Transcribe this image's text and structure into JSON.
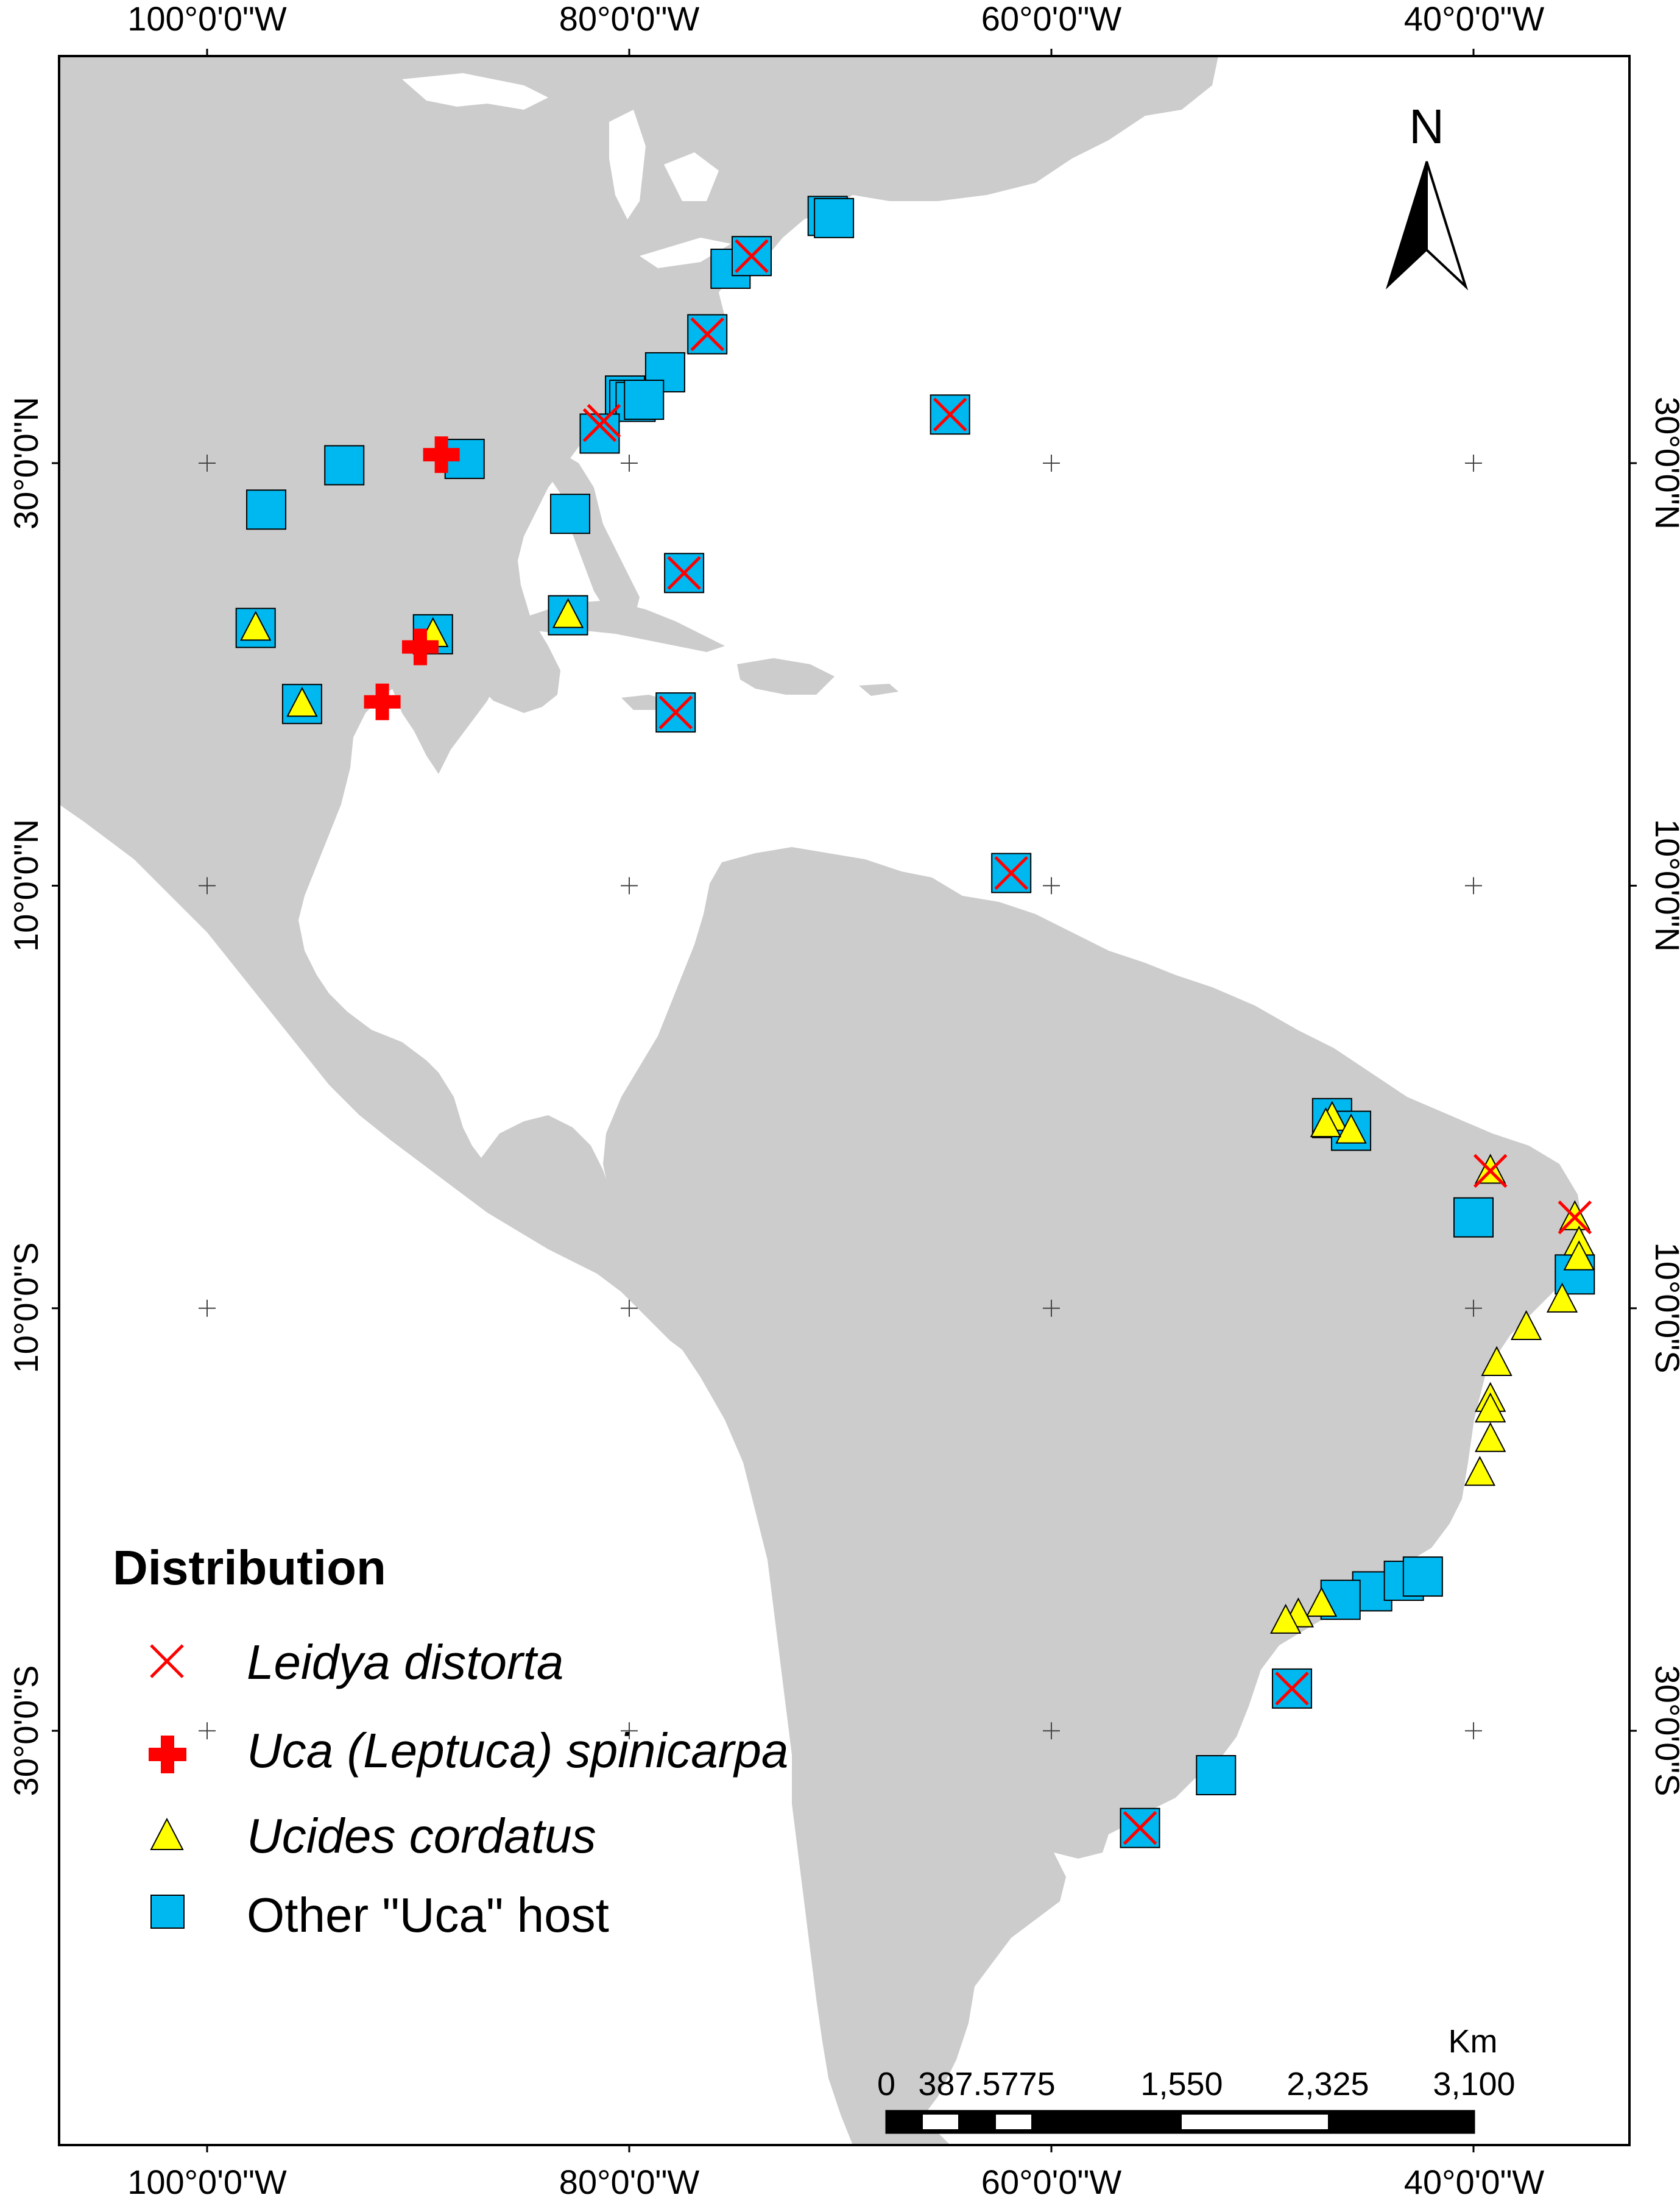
{
  "map": {
    "north_label": "N",
    "lon_ticks_top": [
      "100°0'0\"W",
      "80°0'0\"W",
      "60°0'0\"W",
      "40°0'0\"W"
    ],
    "lon_ticks_bottom": [
      "100°0'0\"W",
      "80°0'0\"W",
      "60°0'0\"W",
      "40°0'0\"W"
    ],
    "lat_ticks_left": [
      "30°0'0\"N",
      "10°0'0\"N",
      "10°0'0\"S",
      "30°0'0\"S"
    ],
    "lat_ticks_right": [
      "30°0'0\"N",
      "10°0'0\"N",
      "10°0'0\"S",
      "30°0'0\"S"
    ],
    "colors": {
      "land": "#cccccc",
      "water": "#ffffff",
      "leidya": "#ff0000",
      "uca_spinicarpa": "#ff0000",
      "ucides": "#ffff00",
      "other_uca": "#00b8f0"
    }
  },
  "legend": {
    "title": "Distribution",
    "items": [
      {
        "label": "Leidya distorta",
        "symbol": "x-icon"
      },
      {
        "label": "Uca (Leptuca) spinicarpa",
        "symbol": "cross-icon"
      },
      {
        "label": "Ucides cordatus",
        "symbol": "triangle-icon"
      },
      {
        "label": "Other \"Uca\" host",
        "symbol": "square-icon"
      }
    ]
  },
  "scale_bar": {
    "unit": "Km",
    "labels": [
      "0",
      "387.5775",
      "1,550",
      "2,325",
      "3,100"
    ]
  },
  "occurrences": {
    "other_uca": [
      [
        -70.6,
        41.7
      ],
      [
        -70.3,
        41.6
      ],
      [
        -75.2,
        39.2
      ],
      [
        -78.3,
        34.3
      ],
      [
        -80.2,
        33.2
      ],
      [
        -80.0,
        33.0
      ],
      [
        -79.7,
        32.9
      ],
      [
        -79.3,
        33.0
      ],
      [
        -81.4,
        31.4
      ],
      [
        -87.8,
        30.2
      ],
      [
        -93.5,
        29.9
      ],
      [
        -97.2,
        27.8
      ],
      [
        -82.8,
        27.6
      ],
      [
        -97.7,
        22.2
      ],
      [
        -89.3,
        21.9
      ],
      [
        -82.9,
        22.8
      ],
      [
        -95.5,
        18.6
      ],
      [
        -46.7,
        -1.0
      ],
      [
        -45.8,
        -1.6
      ],
      [
        -40.0,
        -5.7
      ],
      [
        -35.2,
        -8.4
      ],
      [
        -44.8,
        -23.4
      ],
      [
        -46.3,
        -23.8
      ],
      [
        -43.3,
        -22.9
      ],
      [
        -42.4,
        -22.7
      ],
      [
        -48.6,
        -28.0
      ],
      [
        -52.2,
        -32.1
      ],
      [
        -55.8,
        -34.6
      ],
      [
        -77.4,
        24.8
      ],
      [
        -77.8,
        18.2
      ],
      [
        -61.9,
        10.6
      ],
      [
        -64.8,
        32.3
      ],
      [
        -76.3,
        36.1
      ],
      [
        -74.2,
        39.8
      ]
    ],
    "leidya": [
      [
        -74.2,
        39.8
      ],
      [
        -76.3,
        36.1
      ],
      [
        -81.4,
        31.8
      ],
      [
        -81.2,
        32.0
      ],
      [
        -64.8,
        32.3
      ],
      [
        -77.4,
        24.8
      ],
      [
        -77.8,
        18.2
      ],
      [
        -61.9,
        10.6
      ],
      [
        -39.2,
        -3.5
      ],
      [
        -35.2,
        -5.7
      ],
      [
        -48.6,
        -28.0
      ],
      [
        -55.8,
        -34.6
      ]
    ],
    "uca_spinicarpa": [
      [
        -88.9,
        30.4
      ],
      [
        -89.9,
        21.3
      ],
      [
        -91.7,
        18.7
      ]
    ],
    "ucides": [
      [
        -97.7,
        22.2
      ],
      [
        -89.3,
        21.9
      ],
      [
        -82.9,
        22.8
      ],
      [
        -95.5,
        18.6
      ],
      [
        -46.7,
        -1.0
      ],
      [
        -45.8,
        -1.6
      ],
      [
        -47.0,
        -1.3
      ],
      [
        -39.2,
        -3.5
      ],
      [
        -35.2,
        -5.7
      ],
      [
        -35.0,
        -6.9
      ],
      [
        -35.0,
        -7.6
      ],
      [
        -35.8,
        -9.6
      ],
      [
        -37.5,
        -10.9
      ],
      [
        -38.9,
        -12.6
      ],
      [
        -39.2,
        -14.3
      ],
      [
        -39.2,
        -14.8
      ],
      [
        -39.2,
        -16.2
      ],
      [
        -39.7,
        -17.8
      ],
      [
        -47.2,
        -24.0
      ],
      [
        -48.3,
        -24.5
      ],
      [
        -48.9,
        -24.8
      ]
    ]
  }
}
